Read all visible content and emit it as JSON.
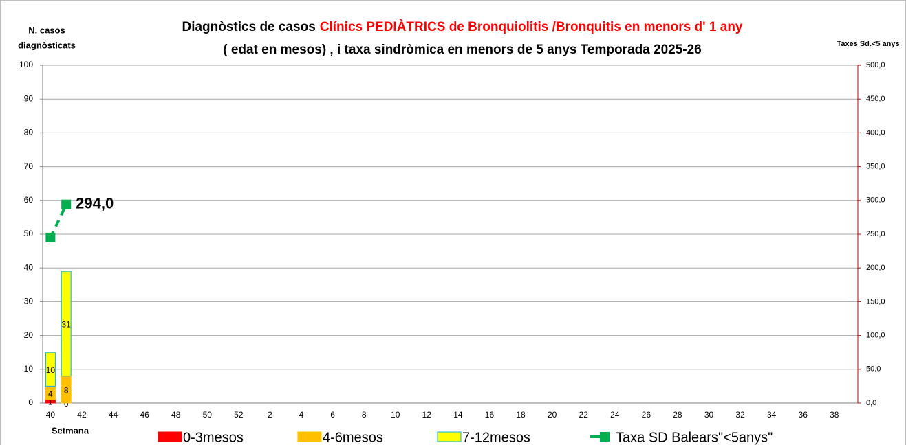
{
  "chart_data": {
    "type": "stacked-bar-line",
    "title": "Diagnòstics de casos",
    "title_highlight": "Clínics PEDIÀTRICS de Bronquiolitis /Bronquitis en menors d' 1 any",
    "subtitle": "( edat en mesos) , i taxa sindròmica en menors de 5 anys Temporada 2025-26",
    "y_label": [
      "N. casos",
      "diagnòsticats"
    ],
    "y2_label": "Taxes Sd.<5 anys",
    "x_label": "Setmana",
    "categories": [
      40,
      null,
      42,
      null,
      44,
      null,
      46,
      null,
      48,
      null,
      50,
      null,
      52,
      null,
      2,
      null,
      4,
      null,
      6,
      null,
      8,
      null,
      10,
      null,
      12,
      null,
      14,
      null,
      16,
      null,
      18,
      null,
      20,
      null,
      22,
      null,
      24,
      null,
      26,
      null,
      28,
      null,
      30,
      null,
      32,
      null,
      34,
      null,
      36,
      null,
      38,
      null
    ],
    "series": [
      {
        "name": "0-3mesos",
        "color": "#ff0000",
        "values": [
          1,
          0,
          null,
          null,
          null,
          null,
          null,
          null,
          null,
          null,
          null,
          null,
          null,
          null,
          null,
          null,
          null,
          null,
          null,
          null,
          null,
          null,
          null,
          null,
          null,
          null,
          null,
          null,
          null,
          null,
          null,
          null,
          null,
          null,
          null,
          null,
          null,
          null,
          null,
          null,
          null,
          null,
          null,
          null,
          null,
          null,
          null,
          null,
          null,
          null,
          null,
          null
        ]
      },
      {
        "name": "4-6mesos",
        "color": "#ffc000",
        "values": [
          4,
          8,
          null,
          null,
          null,
          null,
          null,
          null,
          null,
          null,
          null,
          null,
          null,
          null,
          null,
          null,
          null,
          null,
          null,
          null,
          null,
          null,
          null,
          null,
          null,
          null,
          null,
          null,
          null,
          null,
          null,
          null,
          null,
          null,
          null,
          null,
          null,
          null,
          null,
          null,
          null,
          null,
          null,
          null,
          null,
          null,
          null,
          null,
          null,
          null,
          null,
          null
        ]
      },
      {
        "name": "7-12mesos",
        "color": "#ffff00",
        "values": [
          10,
          31,
          null,
          null,
          null,
          null,
          null,
          null,
          null,
          null,
          null,
          null,
          null,
          null,
          null,
          null,
          null,
          null,
          null,
          null,
          null,
          null,
          null,
          null,
          null,
          null,
          null,
          null,
          null,
          null,
          null,
          null,
          null,
          null,
          null,
          null,
          null,
          null,
          null,
          null,
          null,
          null,
          null,
          null,
          null,
          null,
          null,
          null,
          null,
          null,
          null,
          null
        ]
      },
      {
        "name": "Taxa SD Balears\"<5anys\"",
        "color": "#00b050",
        "axis": "y2",
        "values": [
          245,
          294,
          null,
          null,
          null,
          null,
          null,
          null,
          null,
          null,
          null,
          null,
          null,
          null,
          null,
          null,
          null,
          null,
          null,
          null,
          null,
          null,
          null,
          null,
          null,
          null,
          null,
          null,
          null,
          null,
          null,
          null,
          null,
          null,
          null,
          null,
          null,
          null,
          null,
          null,
          null,
          null,
          null,
          null,
          null,
          null,
          null,
          null,
          null,
          null,
          null,
          null
        ],
        "value_labels": [
          null,
          "294,0",
          null,
          null,
          null,
          null,
          null,
          null,
          null,
          null,
          null,
          null,
          null,
          null,
          null,
          null,
          null,
          null,
          null,
          null,
          null,
          null,
          null,
          null,
          null,
          null,
          null,
          null,
          null,
          null,
          null,
          null,
          null,
          null,
          null,
          null,
          null,
          null,
          null,
          null,
          null,
          null,
          null,
          null,
          null,
          null,
          null,
          null,
          null,
          null,
          null,
          null
        ]
      }
    ],
    "ylim": [
      0,
      100
    ],
    "yticks": [
      0,
      10,
      20,
      30,
      40,
      50,
      60,
      70,
      80,
      90,
      100
    ],
    "y2lim": [
      0,
      500
    ],
    "y2ticks": [
      {
        "value": 0,
        "label": "0,0"
      },
      {
        "value": 50,
        "label": "50,0"
      },
      {
        "value": 100,
        "label": "100,0"
      },
      {
        "value": 150,
        "label": "150,0"
      },
      {
        "value": 200,
        "label": "200,0"
      },
      {
        "value": 250,
        "label": "250,0"
      },
      {
        "value": 300,
        "label": "300,0"
      },
      {
        "value": 350,
        "label": "350,0"
      },
      {
        "value": 400,
        "label": "400,0"
      },
      {
        "value": 450,
        "label": "450,0"
      },
      {
        "value": 500,
        "label": "500,0"
      }
    ],
    "grid": true
  }
}
